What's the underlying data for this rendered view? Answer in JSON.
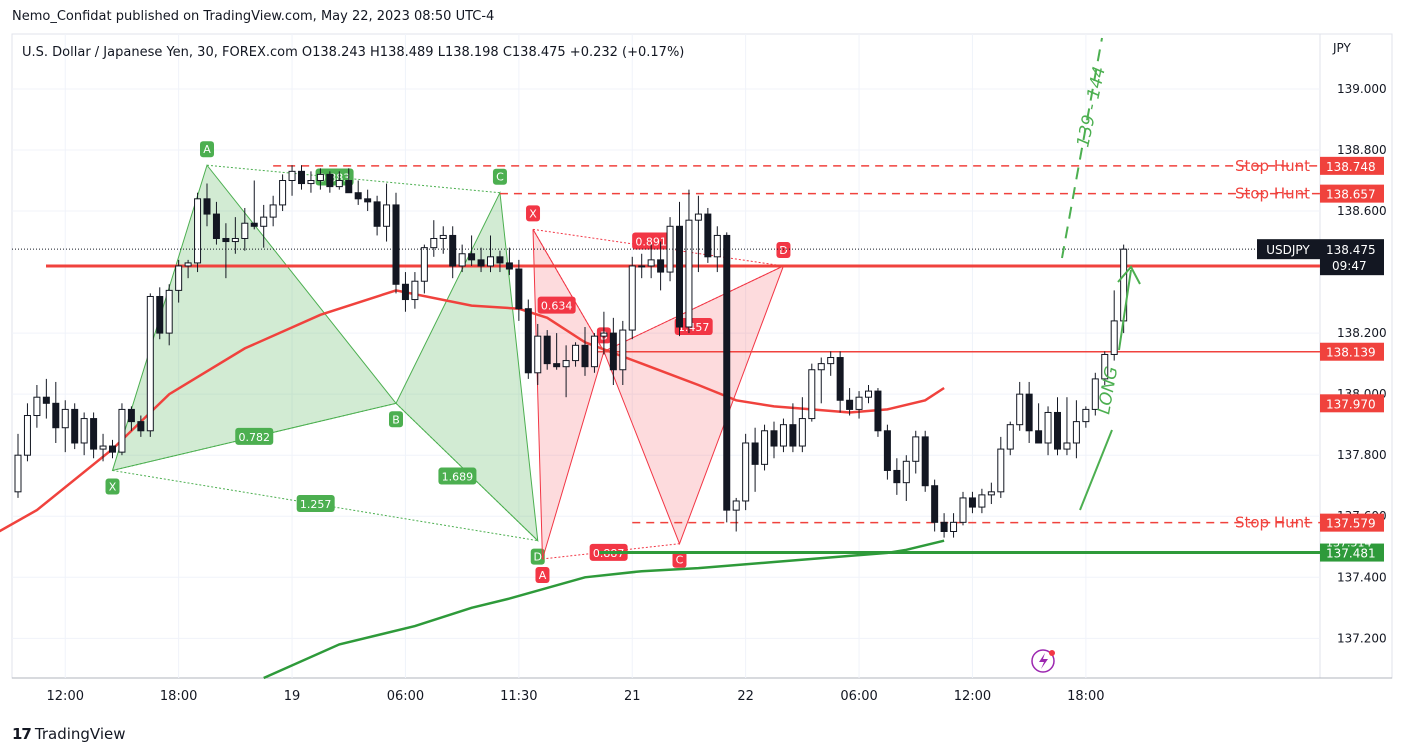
{
  "publish_line": "Nemo_Confidat published on TradingView.com, May 22, 2023 08:50 UTC-4",
  "branding": "TradingView",
  "chart_data": {
    "type": "candlestick",
    "symbol_title": "U.S. Dollar / Japanese Yen, 30, FOREX.com",
    "ohlc": {
      "O": "138.243",
      "H": "138.489",
      "L": "138.198",
      "C": "138.475",
      "change": "+0.232 (+0.17%)"
    },
    "ohlc_labels": {
      "O": "O",
      "H": "H",
      "L": "L",
      "C": "C"
    },
    "currency": "JPY",
    "price_ticks": [
      "139.000",
      "138.800",
      "138.600",
      "138.200",
      "138.000",
      "137.800",
      "137.600",
      "137.400",
      "137.200"
    ],
    "ylim": [
      137.07,
      139.18
    ],
    "time_ticks": [
      "06:00",
      "12:00",
      "18:00",
      "19",
      "06:00",
      "11:30",
      "21",
      "22",
      "06:00",
      "12:00",
      "18:00"
    ],
    "time_tick_bars": [
      -8,
      5,
      17,
      29,
      41,
      53,
      65,
      77,
      89,
      101,
      113
    ],
    "bars": 118,
    "series": [
      {
        "o": 137.68,
        "h": 137.87,
        "l": 137.66,
        "c": 137.8
      },
      {
        "o": 137.8,
        "h": 137.97,
        "l": 137.78,
        "c": 137.93
      },
      {
        "o": 137.93,
        "h": 138.03,
        "l": 137.89,
        "c": 137.99
      },
      {
        "o": 137.99,
        "h": 138.05,
        "l": 137.92,
        "c": 137.97
      },
      {
        "o": 137.97,
        "h": 138.04,
        "l": 137.84,
        "c": 137.89
      },
      {
        "o": 137.89,
        "h": 137.98,
        "l": 137.81,
        "c": 137.95
      },
      {
        "o": 137.95,
        "h": 137.97,
        "l": 137.82,
        "c": 137.84
      },
      {
        "o": 137.84,
        "h": 137.94,
        "l": 137.8,
        "c": 137.92
      },
      {
        "o": 137.92,
        "h": 137.94,
        "l": 137.79,
        "c": 137.82
      },
      {
        "o": 137.82,
        "h": 137.87,
        "l": 137.78,
        "c": 137.83
      },
      {
        "o": 137.83,
        "h": 137.85,
        "l": 137.79,
        "c": 137.81
      },
      {
        "o": 137.81,
        "h": 137.97,
        "l": 137.8,
        "c": 137.95
      },
      {
        "o": 137.95,
        "h": 137.96,
        "l": 137.88,
        "c": 137.91
      },
      {
        "o": 137.91,
        "h": 137.93,
        "l": 137.86,
        "c": 137.88
      },
      {
        "o": 137.88,
        "h": 138.33,
        "l": 137.86,
        "c": 138.32
      },
      {
        "o": 138.32,
        "h": 138.35,
        "l": 138.18,
        "c": 138.2
      },
      {
        "o": 138.2,
        "h": 138.36,
        "l": 138.16,
        "c": 138.34
      },
      {
        "o": 138.34,
        "h": 138.44,
        "l": 138.3,
        "c": 138.42
      },
      {
        "o": 138.42,
        "h": 138.44,
        "l": 138.38,
        "c": 138.43
      },
      {
        "o": 138.43,
        "h": 138.66,
        "l": 138.4,
        "c": 138.64
      },
      {
        "o": 138.64,
        "h": 138.69,
        "l": 138.55,
        "c": 138.59
      },
      {
        "o": 138.59,
        "h": 138.63,
        "l": 138.49,
        "c": 138.51
      },
      {
        "o": 138.51,
        "h": 138.56,
        "l": 138.38,
        "c": 138.5
      },
      {
        "o": 138.5,
        "h": 138.58,
        "l": 138.46,
        "c": 138.51
      },
      {
        "o": 138.51,
        "h": 138.61,
        "l": 138.47,
        "c": 138.56
      },
      {
        "o": 138.56,
        "h": 138.7,
        "l": 138.54,
        "c": 138.55
      },
      {
        "o": 138.55,
        "h": 138.62,
        "l": 138.48,
        "c": 138.58
      },
      {
        "o": 138.58,
        "h": 138.65,
        "l": 138.55,
        "c": 138.62
      },
      {
        "o": 138.62,
        "h": 138.72,
        "l": 138.6,
        "c": 138.7
      },
      {
        "o": 138.7,
        "h": 138.75,
        "l": 138.65,
        "c": 138.73
      },
      {
        "o": 138.73,
        "h": 138.75,
        "l": 138.67,
        "c": 138.69
      },
      {
        "o": 138.69,
        "h": 138.73,
        "l": 138.66,
        "c": 138.7
      },
      {
        "o": 138.7,
        "h": 138.74,
        "l": 138.67,
        "c": 138.72
      },
      {
        "o": 138.72,
        "h": 138.73,
        "l": 138.66,
        "c": 138.68
      },
      {
        "o": 138.68,
        "h": 138.73,
        "l": 138.67,
        "c": 138.7
      },
      {
        "o": 138.7,
        "h": 138.74,
        "l": 138.67,
        "c": 138.66
      },
      {
        "o": 138.66,
        "h": 138.7,
        "l": 138.62,
        "c": 138.64
      },
      {
        "o": 138.64,
        "h": 138.67,
        "l": 138.6,
        "c": 138.63
      },
      {
        "o": 138.63,
        "h": 138.65,
        "l": 138.52,
        "c": 138.55
      },
      {
        "o": 138.55,
        "h": 138.69,
        "l": 138.5,
        "c": 138.62
      },
      {
        "o": 138.62,
        "h": 138.66,
        "l": 138.33,
        "c": 138.36
      },
      {
        "o": 138.36,
        "h": 138.4,
        "l": 138.27,
        "c": 138.31
      },
      {
        "o": 138.31,
        "h": 138.4,
        "l": 138.28,
        "c": 138.37
      },
      {
        "o": 138.37,
        "h": 138.49,
        "l": 138.33,
        "c": 138.48
      },
      {
        "o": 138.48,
        "h": 138.57,
        "l": 138.45,
        "c": 138.51
      },
      {
        "o": 138.51,
        "h": 138.55,
        "l": 138.46,
        "c": 138.52
      },
      {
        "o": 138.52,
        "h": 138.55,
        "l": 138.38,
        "c": 138.42
      },
      {
        "o": 138.42,
        "h": 138.49,
        "l": 138.4,
        "c": 138.46
      },
      {
        "o": 138.46,
        "h": 138.52,
        "l": 138.42,
        "c": 138.44
      },
      {
        "o": 138.44,
        "h": 138.48,
        "l": 138.4,
        "c": 138.42
      },
      {
        "o": 138.42,
        "h": 138.52,
        "l": 138.4,
        "c": 138.45
      },
      {
        "o": 138.45,
        "h": 138.47,
        "l": 138.4,
        "c": 138.43
      },
      {
        "o": 138.43,
        "h": 138.48,
        "l": 138.39,
        "c": 138.41
      },
      {
        "o": 138.41,
        "h": 138.44,
        "l": 138.24,
        "c": 138.28
      },
      {
        "o": 138.28,
        "h": 138.31,
        "l": 138.05,
        "c": 138.07
      },
      {
        "o": 138.07,
        "h": 138.23,
        "l": 138.03,
        "c": 138.19
      },
      {
        "o": 138.19,
        "h": 138.21,
        "l": 138.08,
        "c": 138.1
      },
      {
        "o": 138.1,
        "h": 138.2,
        "l": 138.08,
        "c": 138.09
      },
      {
        "o": 138.09,
        "h": 138.16,
        "l": 137.99,
        "c": 138.11
      },
      {
        "o": 138.11,
        "h": 138.17,
        "l": 138.09,
        "c": 138.16
      },
      {
        "o": 138.16,
        "h": 138.22,
        "l": 138.06,
        "c": 138.09
      },
      {
        "o": 138.09,
        "h": 138.2,
        "l": 138.07,
        "c": 138.19
      },
      {
        "o": 138.19,
        "h": 138.27,
        "l": 138.13,
        "c": 138.2
      },
      {
        "o": 138.2,
        "h": 138.25,
        "l": 138.03,
        "c": 138.08
      },
      {
        "o": 138.08,
        "h": 138.24,
        "l": 138.03,
        "c": 138.21
      },
      {
        "o": 138.21,
        "h": 138.45,
        "l": 138.18,
        "c": 138.42
      },
      {
        "o": 138.42,
        "h": 138.46,
        "l": 138.38,
        "c": 138.42
      },
      {
        "o": 138.42,
        "h": 138.49,
        "l": 138.38,
        "c": 138.44
      },
      {
        "o": 138.44,
        "h": 138.5,
        "l": 138.34,
        "c": 138.4
      },
      {
        "o": 138.4,
        "h": 138.58,
        "l": 138.37,
        "c": 138.55
      },
      {
        "o": 138.55,
        "h": 138.63,
        "l": 138.19,
        "c": 138.22
      },
      {
        "o": 138.22,
        "h": 138.67,
        "l": 138.2,
        "c": 138.57
      },
      {
        "o": 138.57,
        "h": 138.65,
        "l": 138.4,
        "c": 138.59
      },
      {
        "o": 138.59,
        "h": 138.61,
        "l": 138.43,
        "c": 138.45
      },
      {
        "o": 138.45,
        "h": 138.55,
        "l": 138.4,
        "c": 138.52
      },
      {
        "o": 138.52,
        "h": 138.53,
        "l": 137.58,
        "c": 137.62
      },
      {
        "o": 137.62,
        "h": 137.66,
        "l": 137.55,
        "c": 137.65
      },
      {
        "o": 137.65,
        "h": 137.87,
        "l": 137.62,
        "c": 137.84
      },
      {
        "o": 137.84,
        "h": 137.89,
        "l": 137.68,
        "c": 137.77
      },
      {
        "o": 137.77,
        "h": 137.9,
        "l": 137.75,
        "c": 137.88
      },
      {
        "o": 137.88,
        "h": 137.91,
        "l": 137.79,
        "c": 137.83
      },
      {
        "o": 137.83,
        "h": 137.92,
        "l": 137.81,
        "c": 137.9
      },
      {
        "o": 137.9,
        "h": 137.97,
        "l": 137.81,
        "c": 137.83
      },
      {
        "o": 137.83,
        "h": 137.99,
        "l": 137.81,
        "c": 137.92
      },
      {
        "o": 137.92,
        "h": 138.1,
        "l": 137.91,
        "c": 138.08
      },
      {
        "o": 138.08,
        "h": 138.12,
        "l": 137.97,
        "c": 138.1
      },
      {
        "o": 138.1,
        "h": 138.14,
        "l": 138.06,
        "c": 138.12
      },
      {
        "o": 138.12,
        "h": 138.14,
        "l": 137.94,
        "c": 137.98
      },
      {
        "o": 137.98,
        "h": 138.02,
        "l": 137.93,
        "c": 137.95
      },
      {
        "o": 137.95,
        "h": 138.01,
        "l": 137.92,
        "c": 137.99
      },
      {
        "o": 137.99,
        "h": 138.03,
        "l": 137.97,
        "c": 138.01
      },
      {
        "o": 138.01,
        "h": 138.02,
        "l": 137.86,
        "c": 137.88
      },
      {
        "o": 137.88,
        "h": 137.9,
        "l": 137.72,
        "c": 137.75
      },
      {
        "o": 137.75,
        "h": 137.79,
        "l": 137.67,
        "c": 137.71
      },
      {
        "o": 137.71,
        "h": 137.8,
        "l": 137.65,
        "c": 137.78
      },
      {
        "o": 137.78,
        "h": 137.88,
        "l": 137.74,
        "c": 137.86
      },
      {
        "o": 137.86,
        "h": 137.88,
        "l": 137.68,
        "c": 137.7
      },
      {
        "o": 137.7,
        "h": 137.72,
        "l": 137.55,
        "c": 137.58
      },
      {
        "o": 137.58,
        "h": 137.61,
        "l": 137.53,
        "c": 137.55
      },
      {
        "o": 137.55,
        "h": 137.61,
        "l": 137.53,
        "c": 137.58
      },
      {
        "o": 137.58,
        "h": 137.68,
        "l": 137.57,
        "c": 137.66
      },
      {
        "o": 137.66,
        "h": 137.68,
        "l": 137.61,
        "c": 137.63
      },
      {
        "o": 137.63,
        "h": 137.69,
        "l": 137.61,
        "c": 137.67
      },
      {
        "o": 137.67,
        "h": 137.71,
        "l": 137.64,
        "c": 137.68
      },
      {
        "o": 137.68,
        "h": 137.86,
        "l": 137.66,
        "c": 137.82
      },
      {
        "o": 137.82,
        "h": 137.91,
        "l": 137.8,
        "c": 137.9
      },
      {
        "o": 137.9,
        "h": 138.04,
        "l": 137.88,
        "c": 138.0
      },
      {
        "o": 138.0,
        "h": 138.04,
        "l": 137.84,
        "c": 137.88
      },
      {
        "o": 137.88,
        "h": 137.97,
        "l": 137.85,
        "c": 137.84
      },
      {
        "o": 137.84,
        "h": 137.96,
        "l": 137.8,
        "c": 137.94
      },
      {
        "o": 137.94,
        "h": 137.99,
        "l": 137.8,
        "c": 137.82
      },
      {
        "o": 137.82,
        "h": 137.99,
        "l": 137.8,
        "c": 137.84
      },
      {
        "o": 137.84,
        "h": 137.98,
        "l": 137.79,
        "c": 137.91
      },
      {
        "o": 137.91,
        "h": 137.96,
        "l": 137.89,
        "c": 137.95
      },
      {
        "o": 137.95,
        "h": 138.07,
        "l": 137.93,
        "c": 138.05
      },
      {
        "o": 138.05,
        "h": 138.14,
        "l": 138.03,
        "c": 138.13
      },
      {
        "o": 138.13,
        "h": 138.34,
        "l": 138.11,
        "c": 138.24
      },
      {
        "o": 138.24,
        "h": 138.49,
        "l": 138.2,
        "c": 138.475
      }
    ],
    "ema_fast": {
      "name": "",
      "color": "#f0423d",
      "x": [
        -12,
        -6,
        2,
        10,
        16,
        24,
        32,
        40,
        48,
        53,
        56,
        60,
        66,
        72,
        76,
        80,
        84,
        88,
        92,
        96,
        98
      ],
      "y": [
        137.3,
        137.48,
        137.62,
        137.82,
        138.0,
        138.15,
        138.26,
        138.34,
        138.29,
        138.28,
        138.25,
        138.17,
        138.1,
        138.03,
        137.98,
        137.96,
        137.95,
        137.94,
        137.95,
        137.98,
        138.02
      ]
    },
    "ema_slow": {
      "name": "",
      "color": "#2e9a3a",
      "x": [
        26,
        34,
        42,
        48,
        52,
        60,
        66,
        72,
        80,
        88,
        92,
        94,
        98
      ],
      "y": [
        137.07,
        137.18,
        137.24,
        137.3,
        137.33,
        137.4,
        137.42,
        137.43,
        137.45,
        137.47,
        137.48,
        137.49,
        137.52
      ]
    },
    "levels": [
      {
        "name": "stop-hunt-high-1",
        "price": 138.748,
        "label": "Stop Hunt",
        "axis_label": "138.748",
        "style": "dashed",
        "color": "#f0423d"
      },
      {
        "name": "stop-hunt-high-2",
        "price": 138.657,
        "label": "Stop Hunt",
        "axis_label": "138.657",
        "style": "dashed",
        "color": "#f0423d"
      },
      {
        "name": "resistance",
        "price": 138.42,
        "label": "",
        "axis_label": "",
        "style": "solid",
        "color": "#f0423d"
      },
      {
        "name": "level-138139",
        "price": 138.139,
        "label": "",
        "axis_label": "138.139",
        "style": "solid",
        "color": "#f0423d"
      },
      {
        "name": "stop-hunt-low",
        "price": 137.579,
        "label": "Stop Hunt",
        "axis_label": "137.579",
        "style": "dashed",
        "color": "#f0423d"
      },
      {
        "name": "support",
        "price": 137.481,
        "label": "",
        "axis_label": "137.481",
        "style": "solid",
        "color": "#2e9a3a"
      }
    ],
    "ma_axis_label": "137.970",
    "partial_axis_label": "137.514",
    "last_price_tag": {
      "symbol": "USDJPY",
      "price": "138.475",
      "countdown": "09:47"
    },
    "patterns": [
      {
        "color": "green",
        "points": [
          {
            "label": "X",
            "bar": 10,
            "price": 137.75
          },
          {
            "label": "A",
            "bar": 20,
            "price": 138.75
          },
          {
            "label": "B",
            "bar": 40,
            "price": 137.97
          },
          {
            "label": "C",
            "bar": 51,
            "price": 138.66
          },
          {
            "label": "D",
            "bar": 55,
            "price": 137.52
          }
        ],
        "ratios": [
          {
            "value": "0.883",
            "bar": 33.5,
            "price": 138.71
          },
          {
            "value": "0.782",
            "bar": 25,
            "price": 137.86
          },
          {
            "value": "1.689",
            "bar": 46.5,
            "price": 137.73
          },
          {
            "value": "1.257",
            "bar": 31.5,
            "price": 137.64
          }
        ]
      },
      {
        "color": "red",
        "points": [
          {
            "label": "X",
            "bar": 54.5,
            "price": 138.54
          },
          {
            "label": "A",
            "bar": 55.5,
            "price": 137.46
          },
          {
            "label": "B",
            "bar": 62,
            "price": 138.14
          },
          {
            "label": "C",
            "bar": 70,
            "price": 137.51
          },
          {
            "label": "D",
            "bar": 81,
            "price": 138.42
          }
        ],
        "ratios": [
          {
            "value": "0.634",
            "bar": 57,
            "price": 138.29
          },
          {
            "value": "0.891",
            "bar": 67,
            "price": 138.5
          },
          {
            "value": "1.457",
            "bar": 71.5,
            "price": 138.22
          },
          {
            "value": "0.887",
            "bar": 62.5,
            "price": 137.48
          }
        ]
      }
    ],
    "annotations": {
      "target": "139 - 144",
      "direction": "LONG"
    }
  }
}
